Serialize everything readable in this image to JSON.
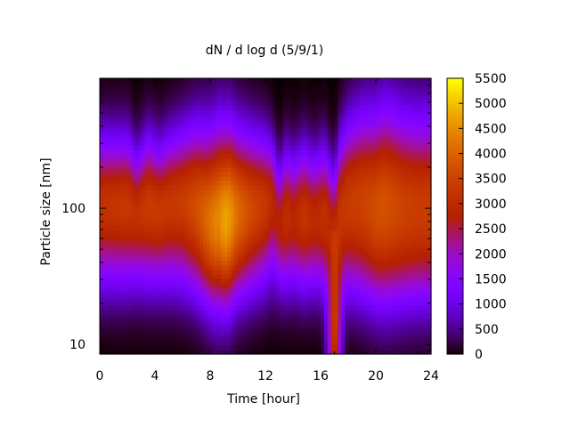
{
  "chart_data": {
    "type": "heatmap",
    "title": "dN / d log d (5/9/1)",
    "xlabel": "Time [hour]",
    "ylabel": "Particle size [nm]",
    "xlim": [
      0,
      24
    ],
    "ylim_nm": [
      8.5,
      900
    ],
    "yscale": "log",
    "x_ticks": [
      "0",
      "4",
      "8",
      "12",
      "16",
      "20",
      "24"
    ],
    "y_ticks": [
      "10",
      "100"
    ],
    "colorbar": {
      "range": [
        0,
        5500
      ],
      "ticks": [
        "0",
        "500",
        "1000",
        "1500",
        "2000",
        "2500",
        "3000",
        "3500",
        "4000",
        "4500",
        "5000",
        "5500"
      ],
      "palette": "gnuplot-pm3d-black-blue-purple-red-orange-yellow"
    },
    "time_hours": [
      0,
      1,
      2,
      2.7,
      3.5,
      4.3,
      5,
      6,
      7,
      7.7,
      8.3,
      8.7,
      9,
      9.4,
      10,
      11,
      12,
      12.5,
      13,
      13.5,
      14,
      14.8,
      15.5,
      16.3,
      16.7,
      17,
      17.4,
      18,
      19,
      20,
      20.5,
      21,
      22,
      23,
      24
    ],
    "mode_diameter_nm": [
      110,
      110,
      110,
      95,
      110,
      100,
      110,
      115,
      110,
      95,
      90,
      95,
      90,
      95,
      100,
      105,
      110,
      115,
      80,
      95,
      90,
      95,
      90,
      95,
      85,
      70,
      100,
      115,
      120,
      110,
      115,
      115,
      110,
      110,
      110
    ],
    "peak_dNdlogd": [
      3100,
      3150,
      3200,
      3000,
      3300,
      3200,
      3200,
      3300,
      3600,
      3900,
      4200,
      4300,
      4600,
      4500,
      4000,
      3500,
      3200,
      2900,
      2500,
      3000,
      2700,
      3100,
      2800,
      3000,
      2700,
      2600,
      3100,
      3300,
      3400,
      3600,
      3700,
      3600,
      3400,
      3300,
      3300
    ],
    "mode_width_dex": [
      0.34,
      0.34,
      0.34,
      0.3,
      0.34,
      0.32,
      0.34,
      0.36,
      0.4,
      0.42,
      0.44,
      0.45,
      0.44,
      0.44,
      0.4,
      0.37,
      0.34,
      0.3,
      0.28,
      0.32,
      0.3,
      0.33,
      0.31,
      0.33,
      0.3,
      0.3,
      0.36,
      0.4,
      0.44,
      0.46,
      0.48,
      0.48,
      0.46,
      0.45,
      0.45
    ],
    "nucleation_event": {
      "time_hours": 17,
      "diameter_nm": 12,
      "value": 3200
    }
  }
}
